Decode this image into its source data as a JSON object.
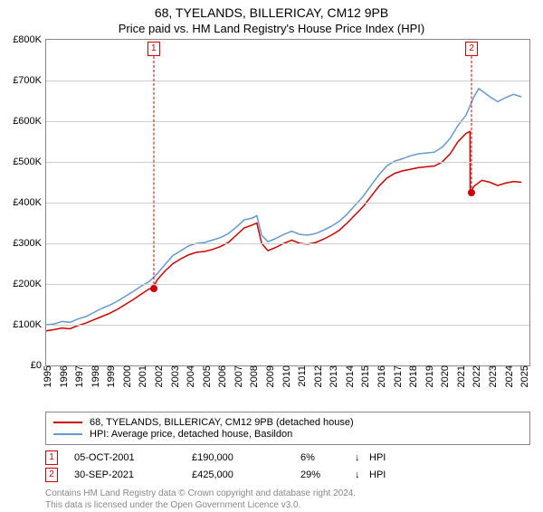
{
  "title": "68, TYELANDS, BILLERICAY, CM12 9PB",
  "subtitle": "Price paid vs. HM Land Registry's House Price Index (HPI)",
  "chart": {
    "type": "line",
    "background_color": "#ffffff",
    "grid_color": "#cccccc",
    "axis_color": "#888888",
    "x_range": [
      1995,
      2025.5
    ],
    "y_range": [
      0,
      800
    ],
    "y_ticks": [
      0,
      100,
      200,
      300,
      400,
      500,
      600,
      700,
      800
    ],
    "y_tick_labels": [
      "£0",
      "£100K",
      "£200K",
      "£300K",
      "£400K",
      "£500K",
      "£600K",
      "£700K",
      "£800K"
    ],
    "x_ticks": [
      1995,
      1996,
      1997,
      1998,
      1999,
      2000,
      2001,
      2002,
      2003,
      2004,
      2005,
      2006,
      2007,
      2008,
      2009,
      2010,
      2011,
      2012,
      2013,
      2014,
      2015,
      2016,
      2017,
      2018,
      2019,
      2020,
      2021,
      2022,
      2023,
      2024,
      2025
    ],
    "series": [
      {
        "name": "subject_property",
        "label": "68, TYELANDS, BILLERICAY, CM12 9PB (detached house)",
        "color": "#cc0000",
        "line_width": 1.5,
        "data": [
          [
            1995,
            85
          ],
          [
            1995.5,
            88
          ],
          [
            1996,
            92
          ],
          [
            1996.5,
            90
          ],
          [
            1997,
            98
          ],
          [
            1997.5,
            104
          ],
          [
            1998,
            112
          ],
          [
            1998.5,
            120
          ],
          [
            1999,
            128
          ],
          [
            1999.5,
            138
          ],
          [
            2000,
            150
          ],
          [
            2000.5,
            162
          ],
          [
            2001,
            175
          ],
          [
            2001.5,
            188
          ],
          [
            2001.76,
            190
          ],
          [
            2002,
            210
          ],
          [
            2002.5,
            232
          ],
          [
            2003,
            250
          ],
          [
            2003.5,
            262
          ],
          [
            2004,
            272
          ],
          [
            2004.5,
            278
          ],
          [
            2005,
            280
          ],
          [
            2005.5,
            285
          ],
          [
            2006,
            292
          ],
          [
            2006.5,
            302
          ],
          [
            2007,
            320
          ],
          [
            2007.5,
            338
          ],
          [
            2008,
            345
          ],
          [
            2008.3,
            350
          ],
          [
            2008.6,
            300
          ],
          [
            2009,
            282
          ],
          [
            2009.5,
            290
          ],
          [
            2010,
            300
          ],
          [
            2010.5,
            308
          ],
          [
            2011,
            300
          ],
          [
            2011.5,
            298
          ],
          [
            2012,
            302
          ],
          [
            2012.5,
            310
          ],
          [
            2013,
            320
          ],
          [
            2013.5,
            332
          ],
          [
            2014,
            350
          ],
          [
            2014.5,
            370
          ],
          [
            2015,
            390
          ],
          [
            2015.5,
            415
          ],
          [
            2016,
            440
          ],
          [
            2016.5,
            460
          ],
          [
            2017,
            472
          ],
          [
            2017.5,
            478
          ],
          [
            2018,
            482
          ],
          [
            2018.5,
            486
          ],
          [
            2019,
            488
          ],
          [
            2019.5,
            490
          ],
          [
            2020,
            500
          ],
          [
            2020.5,
            520
          ],
          [
            2021,
            550
          ],
          [
            2021.5,
            570
          ],
          [
            2021.75,
            575
          ],
          [
            2021.76,
            425
          ],
          [
            2022,
            440
          ],
          [
            2022.5,
            455
          ],
          [
            2023,
            450
          ],
          [
            2023.5,
            442
          ],
          [
            2024,
            448
          ],
          [
            2024.5,
            452
          ],
          [
            2025,
            450
          ]
        ]
      },
      {
        "name": "hpi",
        "label": "HPI: Average price, detached house, Basildon",
        "color": "#6699cc",
        "line_width": 1.5,
        "data": [
          [
            1995,
            100
          ],
          [
            1995.5,
            102
          ],
          [
            1996,
            108
          ],
          [
            1996.5,
            106
          ],
          [
            1997,
            114
          ],
          [
            1997.5,
            120
          ],
          [
            1998,
            130
          ],
          [
            1998.5,
            140
          ],
          [
            1999,
            148
          ],
          [
            1999.5,
            158
          ],
          [
            2000,
            170
          ],
          [
            2000.5,
            182
          ],
          [
            2001,
            195
          ],
          [
            2001.5,
            206
          ],
          [
            2002,
            225
          ],
          [
            2002.5,
            248
          ],
          [
            2003,
            270
          ],
          [
            2003.5,
            282
          ],
          [
            2004,
            294
          ],
          [
            2004.5,
            300
          ],
          [
            2005,
            302
          ],
          [
            2005.5,
            308
          ],
          [
            2006,
            314
          ],
          [
            2006.5,
            324
          ],
          [
            2007,
            340
          ],
          [
            2007.5,
            358
          ],
          [
            2008,
            362
          ],
          [
            2008.3,
            368
          ],
          [
            2008.6,
            320
          ],
          [
            2009,
            304
          ],
          [
            2009.5,
            312
          ],
          [
            2010,
            322
          ],
          [
            2010.5,
            330
          ],
          [
            2011,
            322
          ],
          [
            2011.5,
            320
          ],
          [
            2012,
            324
          ],
          [
            2012.5,
            332
          ],
          [
            2013,
            342
          ],
          [
            2013.5,
            354
          ],
          [
            2014,
            372
          ],
          [
            2014.5,
            394
          ],
          [
            2015,
            415
          ],
          [
            2015.5,
            442
          ],
          [
            2016,
            468
          ],
          [
            2016.5,
            490
          ],
          [
            2017,
            502
          ],
          [
            2017.5,
            508
          ],
          [
            2018,
            515
          ],
          [
            2018.5,
            520
          ],
          [
            2019,
            522
          ],
          [
            2019.5,
            524
          ],
          [
            2020,
            536
          ],
          [
            2020.5,
            558
          ],
          [
            2021,
            590
          ],
          [
            2021.5,
            615
          ],
          [
            2022,
            660
          ],
          [
            2022.3,
            680
          ],
          [
            2022.6,
            672
          ],
          [
            2023,
            660
          ],
          [
            2023.5,
            648
          ],
          [
            2024,
            658
          ],
          [
            2024.5,
            666
          ],
          [
            2025,
            660
          ]
        ]
      }
    ],
    "markers": [
      {
        "num": "1",
        "x": 2001.76,
        "y": 190
      },
      {
        "num": "2",
        "x": 2021.75,
        "y": 425
      }
    ]
  },
  "legend": [
    {
      "color": "#cc0000",
      "label": "68, TYELANDS, BILLERICAY, CM12 9PB (detached house)"
    },
    {
      "color": "#6699cc",
      "label": "HPI: Average price, detached house, Basildon"
    }
  ],
  "events": [
    {
      "num": "1",
      "date": "05-OCT-2001",
      "price": "£190,000",
      "diff": "6%",
      "arrow": "↓",
      "label": "HPI"
    },
    {
      "num": "2",
      "date": "30-SEP-2021",
      "price": "£425,000",
      "diff": "29%",
      "arrow": "↓",
      "label": "HPI"
    }
  ],
  "credits": {
    "line1": "Contains HM Land Registry data © Crown copyright and database right 2024.",
    "line2": "This data is licensed under the Open Government Licence v3.0."
  }
}
